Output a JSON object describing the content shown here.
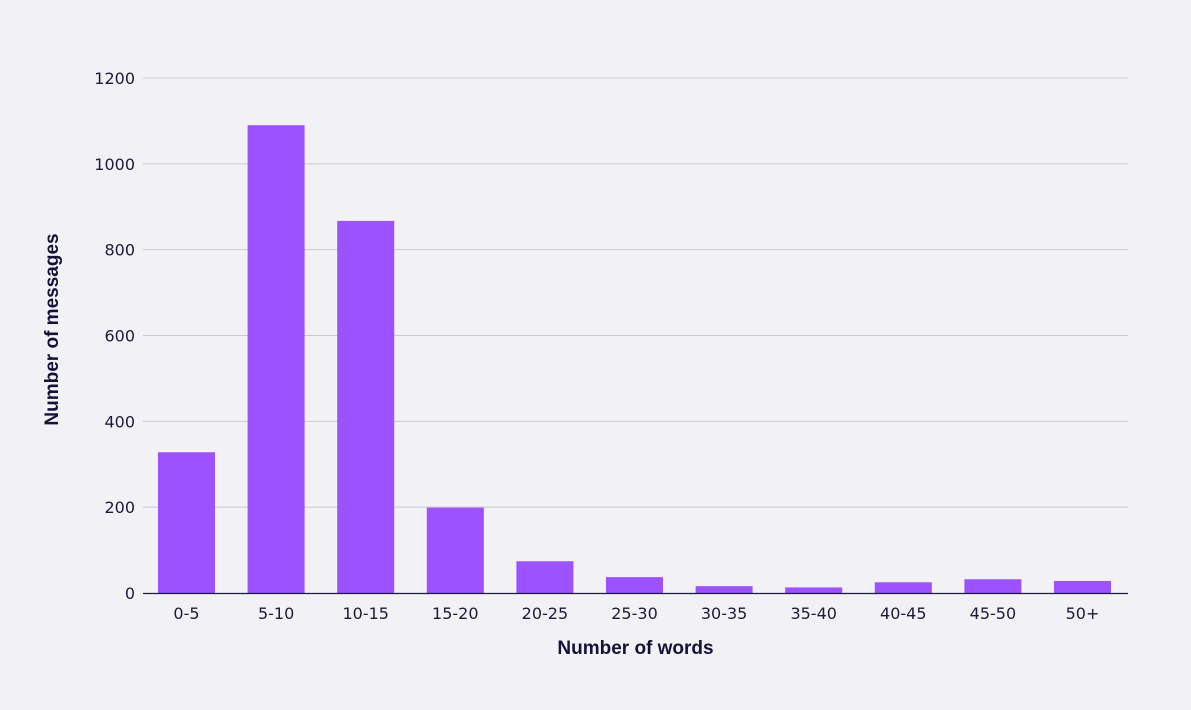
{
  "chart_data": {
    "type": "bar",
    "title": "",
    "xlabel": "Number of words",
    "ylabel": "Number of messages",
    "categories": [
      "0-5",
      "5-10",
      "10-15",
      "15-20",
      "20-25",
      "25-30",
      "30-35",
      "35-40",
      "40-45",
      "45-50",
      "50+"
    ],
    "values": [
      328,
      1090,
      867,
      199,
      74,
      37,
      16,
      13,
      25,
      32,
      28
    ],
    "ylim": [
      0,
      1200
    ],
    "yticks": [
      0,
      200,
      400,
      600,
      800,
      1000,
      1200
    ],
    "grid": true,
    "legend": "none",
    "bar_color": "#9c52fe"
  }
}
